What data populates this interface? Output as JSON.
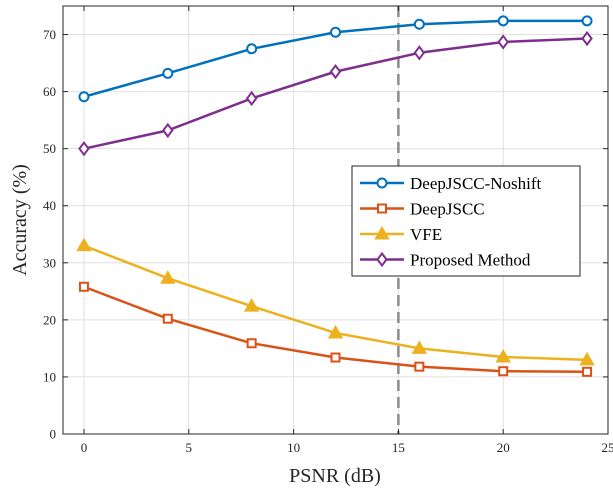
{
  "chart_data": {
    "type": "line",
    "title": "",
    "xlabel": "PSNR (dB)",
    "ylabel": "Accuracy (%)",
    "xlim": [
      -1,
      25
    ],
    "ylim": [
      0,
      75
    ],
    "xticks": [
      0,
      5,
      10,
      15,
      20,
      25
    ],
    "yticks": [
      0,
      10,
      20,
      30,
      40,
      50,
      60,
      70
    ],
    "grid": true,
    "legend_position": "right",
    "reference_line": {
      "x": 15,
      "style": "dashed",
      "color": "#8c8c8c"
    },
    "x": [
      0,
      4,
      8,
      12,
      16,
      20,
      24
    ],
    "series": [
      {
        "name": "DeepJSCC-Noshift",
        "color": "#0072BD",
        "marker": "circle",
        "values": [
          59.1,
          63.2,
          67.5,
          70.4,
          71.8,
          72.4,
          72.4
        ]
      },
      {
        "name": "DeepJSCC",
        "color": "#D95319",
        "marker": "square",
        "values": [
          25.8,
          20.2,
          15.9,
          13.4,
          11.8,
          11.0,
          10.9
        ]
      },
      {
        "name": "VFE",
        "color": "#EDB120",
        "marker": "triangle",
        "values": [
          33.0,
          27.3,
          22.4,
          17.7,
          15.0,
          13.5,
          13.0
        ]
      },
      {
        "name": "Proposed Method",
        "color": "#7E2F8E",
        "marker": "diamond",
        "values": [
          50.0,
          53.2,
          58.8,
          63.5,
          66.8,
          68.7,
          69.3
        ]
      }
    ]
  }
}
